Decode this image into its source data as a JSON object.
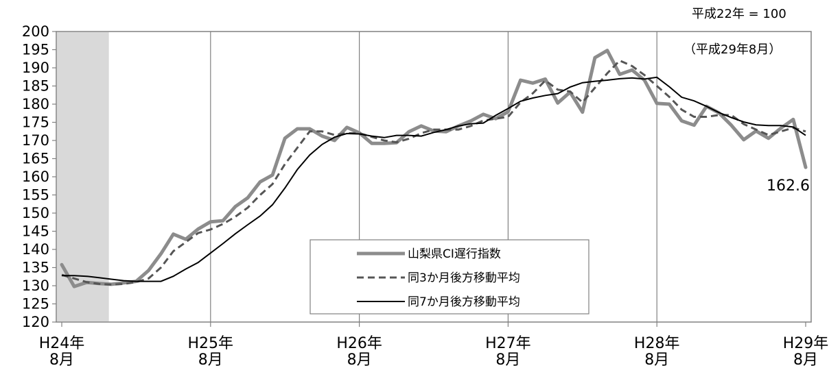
{
  "notes": {
    "base": "平成22年 = 100",
    "period": "（平成29年8月）"
  },
  "chart_data": {
    "type": "line",
    "ylim": [
      120,
      200
    ],
    "yticks": [
      120,
      125,
      130,
      135,
      140,
      145,
      150,
      155,
      160,
      165,
      170,
      175,
      180,
      185,
      190,
      195,
      200
    ],
    "xtick_labels": [
      {
        "line1": "H24年",
        "line2": "8月"
      },
      {
        "line1": "H25年",
        "line2": "8月"
      },
      {
        "line1": "H26年",
        "line2": "8月"
      },
      {
        "line1": "H27年",
        "line2": "8月"
      },
      {
        "line1": "H28年",
        "line2": "8月"
      },
      {
        "line1": "H29年",
        "line2": "8月"
      }
    ],
    "x_range_months": [
      0,
      60
    ],
    "shaded_region_months": [
      0,
      3.8
    ],
    "legend": [
      {
        "name": "山梨県CI遅行指数",
        "style": "thick-gray"
      },
      {
        "name": "同3か月後方移動平均",
        "style": "dashed"
      },
      {
        "name": "同7か月後方移動平均",
        "style": "thin-black"
      }
    ],
    "series": [
      {
        "name": "山梨県CI遅行指数",
        "color": "#8c8c8c",
        "values": [
          135.8,
          129.8,
          130.9,
          130.6,
          130.4,
          130.8,
          131.2,
          134.2,
          138.8,
          144.2,
          142.8,
          145.6,
          147.6,
          147.9,
          151.8,
          154.2,
          158.6,
          160.5,
          170.6,
          173.2,
          173.2,
          171.2,
          170.0,
          173.6,
          172.1,
          169.2,
          169.2,
          169.4,
          172.4,
          174.0,
          172.6,
          172.4,
          174.0,
          175.4,
          177.2,
          176.0,
          177.9,
          186.6,
          185.8,
          186.9,
          180.3,
          183.3,
          177.8,
          192.8,
          194.8,
          188.2,
          189.4,
          186.6,
          180.2,
          180.0,
          175.4,
          174.2,
          179.4,
          177.6,
          174.2,
          170.2,
          172.6,
          170.6,
          173.4,
          175.8,
          162.6
        ]
      },
      {
        "name": "同3か月後方移動平均",
        "color": "#555555",
        "values": [
          133.0,
          132.0,
          131.0,
          130.5,
          130.3,
          130.5,
          131.0,
          132.0,
          135.0,
          139.5,
          142.0,
          144.5,
          145.5,
          147.0,
          149.0,
          151.5,
          155.0,
          158.0,
          163.5,
          168.0,
          172.5,
          172.5,
          171.5,
          172.0,
          172.0,
          171.0,
          170.0,
          169.5,
          170.5,
          172.0,
          173.0,
          173.0,
          173.0,
          174.0,
          175.5,
          176.0,
          176.5,
          180.5,
          183.0,
          186.5,
          184.0,
          183.5,
          180.5,
          184.5,
          188.5,
          192.0,
          190.5,
          188.0,
          185.0,
          182.0,
          178.5,
          176.5,
          176.5,
          177.0,
          177.0,
          174.5,
          173.0,
          171.5,
          172.5,
          173.5,
          172.5
        ]
      },
      {
        "name": "同7か月後方移動平均",
        "color": "#000000",
        "values": [
          132.8,
          132.8,
          132.6,
          132.2,
          131.8,
          131.4,
          131.2,
          131.2,
          131.2,
          132.6,
          134.6,
          136.4,
          139.0,
          141.6,
          144.3,
          146.8,
          149.2,
          152.3,
          156.9,
          162.0,
          166.0,
          168.9,
          170.9,
          171.9,
          171.8,
          171.2,
          170.8,
          171.4,
          171.4,
          171.2,
          172.2,
          173.0,
          174.0,
          174.6,
          174.8,
          176.9,
          178.8,
          180.8,
          181.7,
          182.4,
          182.9,
          184.7,
          185.9,
          186.3,
          186.6,
          187.0,
          187.2,
          186.9,
          187.4,
          184.8,
          181.9,
          180.9,
          179.4,
          177.7,
          176.3,
          175.1,
          174.3,
          174.1,
          174.1,
          173.7,
          171.4
        ]
      }
    ],
    "last_value_label": "162.6"
  }
}
